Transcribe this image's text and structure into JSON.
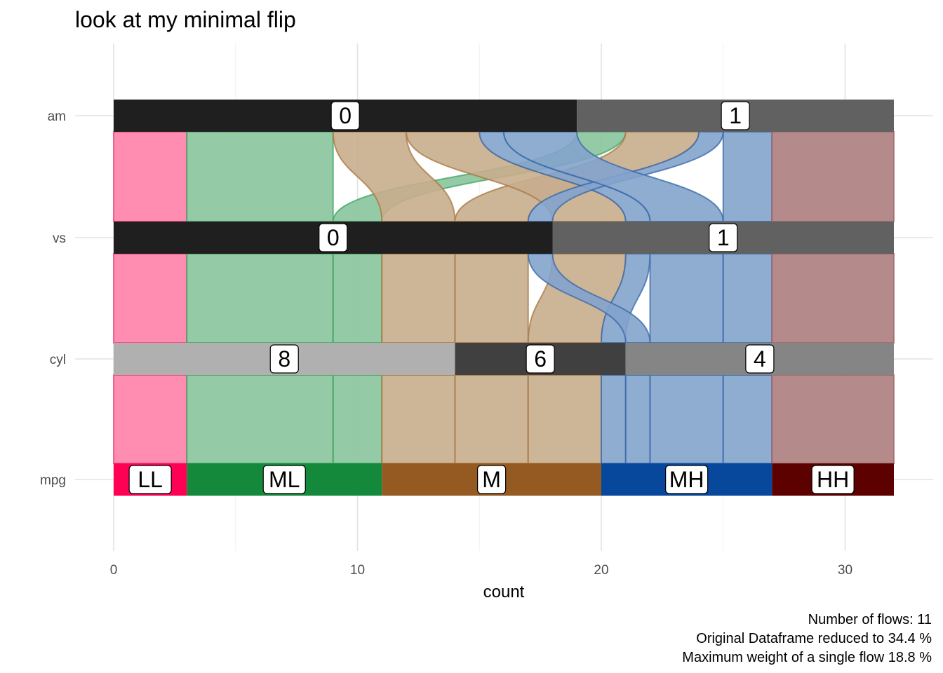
{
  "chart_data": {
    "type": "alluvial",
    "title": "look at my minimal flip",
    "xlabel": "count",
    "ylabel": "",
    "xlim": [
      0,
      32
    ],
    "x_ticks": [
      "0",
      "10",
      "20",
      "30"
    ],
    "axes": [
      "mpg",
      "cyl",
      "vs",
      "am"
    ],
    "nodes": {
      "mpg": [
        {
          "label": "LL",
          "count": 3,
          "color": "#ff0055"
        },
        {
          "label": "ML",
          "count": 8,
          "color": "#14893c"
        },
        {
          "label": "M",
          "count": 9,
          "color": "#945a21"
        },
        {
          "label": "MH",
          "count": 7,
          "color": "#07489c"
        },
        {
          "label": "HH",
          "count": 5,
          "color": "#5c0000"
        }
      ],
      "cyl": [
        {
          "label": "8",
          "count": 14,
          "color": "#b0b0b0"
        },
        {
          "label": "6",
          "count": 7,
          "color": "#404040"
        },
        {
          "label": "4",
          "count": 11,
          "color": "#858585"
        }
      ],
      "vs": [
        {
          "label": "0",
          "count": 18,
          "color": "#1f1f1f"
        },
        {
          "label": "1",
          "count": 14,
          "color": "#616161"
        }
      ],
      "am": [
        {
          "label": "0",
          "count": 19,
          "color": "#1f1f1f"
        },
        {
          "label": "1",
          "count": 13,
          "color": "#616161"
        }
      ]
    },
    "flows": [
      {
        "mpg": "LL",
        "cyl": "8",
        "vs": "0",
        "am": "0",
        "count": 3,
        "color": "#ff80a8"
      },
      {
        "mpg": "ML",
        "cyl": "8",
        "vs": "0",
        "am": "0",
        "count": 6,
        "color": "#88c49b"
      },
      {
        "mpg": "ML",
        "cyl": "8",
        "vs": "0",
        "am": "1",
        "count": 2,
        "color": "#88c49b"
      },
      {
        "mpg": "M",
        "cyl": "8",
        "vs": "0",
        "am": "0",
        "count": 3,
        "color": "#c8ad8d"
      },
      {
        "mpg": "M",
        "cyl": "6",
        "vs": "0",
        "am": "1",
        "count": 3,
        "color": "#c8ad8d"
      },
      {
        "mpg": "M",
        "cyl": "6",
        "vs": "1",
        "am": "0",
        "count": 3,
        "color": "#c8ad8d"
      },
      {
        "mpg": "MH",
        "cyl": "6",
        "vs": "1",
        "am": "0",
        "count": 1,
        "color": "#83a3cc"
      },
      {
        "mpg": "MH",
        "cyl": "4",
        "vs": "0",
        "am": "1",
        "count": 1,
        "color": "#83a3cc"
      },
      {
        "mpg": "MH",
        "cyl": "4",
        "vs": "1",
        "am": "0",
        "count": 3,
        "color": "#83a3cc"
      },
      {
        "mpg": "MH",
        "cyl": "4",
        "vs": "1",
        "am": "1",
        "count": 2,
        "color": "#83a3cc"
      },
      {
        "mpg": "HH",
        "cyl": "4",
        "vs": "1",
        "am": "1",
        "count": 5,
        "color": "#ad7d7d"
      }
    ],
    "flow_outline_colors": {
      "LL": "#e84378",
      "ML": "#3ea462",
      "M": "#a8753f",
      "MH": "#3767a8",
      "HH": "#a06666"
    },
    "caption": [
      "Number of flows: 11",
      "Original Dataframe reduced to 34.4 %",
      "Maximum weight of a single flow 18.8 %"
    ],
    "grid": true,
    "coord_flip": true
  }
}
